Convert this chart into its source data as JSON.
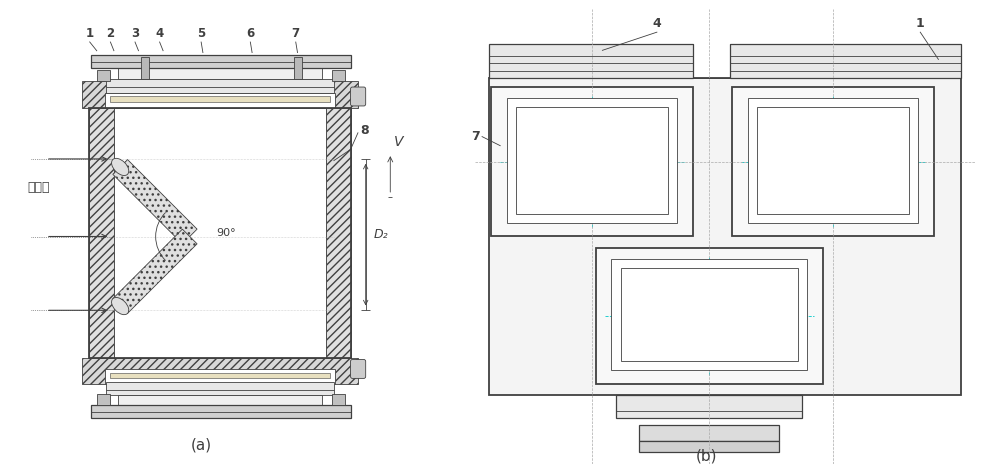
{
  "bg_color": "#ffffff",
  "lc": "#404040",
  "lc_thin": "#888888",
  "lc_cyan": "#00c8c8",
  "lc_pink": "#e090e0",
  "lc_green": "#00b000",
  "fig_width": 10.0,
  "fig_height": 4.73,
  "label_a": "(a)",
  "label_b": "(b)",
  "text_V": "V",
  "text_90": "90°",
  "text_D2": "D₂",
  "text_light": "入射光",
  "numbers_top": [
    "1",
    "2",
    "3",
    "4",
    "5",
    "6",
    "7"
  ],
  "num4_label": "4",
  "num1_label": "1",
  "num7_label": "7",
  "num8_label": "8"
}
